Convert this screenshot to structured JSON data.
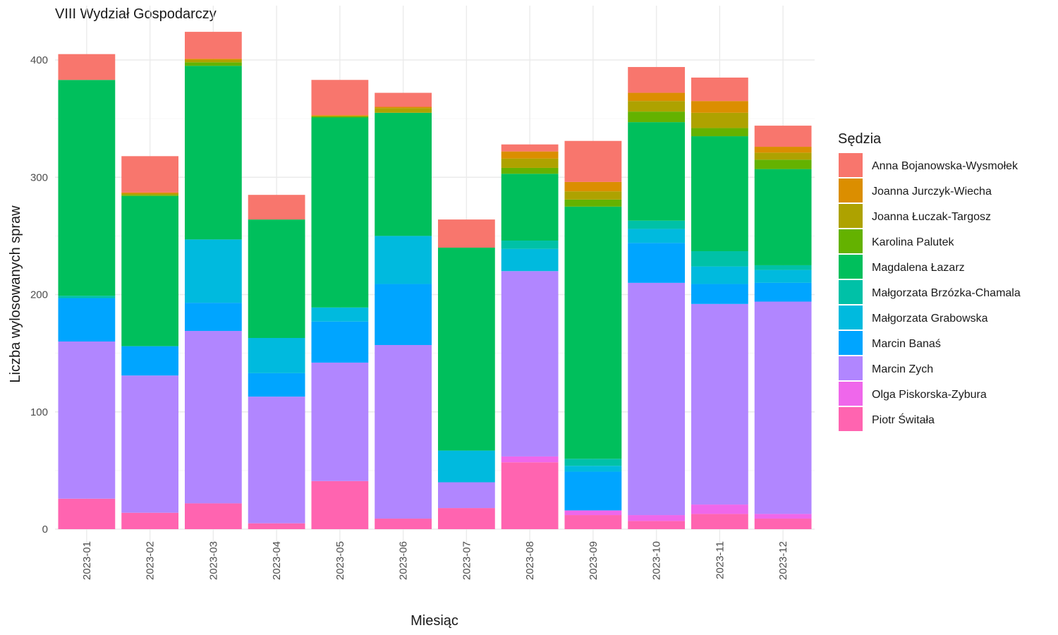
{
  "chart_data": {
    "type": "bar",
    "stacked": true,
    "title": "VIII Wydział Gospodarczy",
    "xlabel": "Miesiąc",
    "ylabel": "Liczba wylosowanych spraw",
    "ylim": [
      0,
      430
    ],
    "yticks": [
      0,
      100,
      200,
      300,
      400
    ],
    "grid": true,
    "legend_title": "Sędzia",
    "legend_position": "right",
    "categories": [
      "2023-01",
      "2023-02",
      "2023-03",
      "2023-04",
      "2023-05",
      "2023-06",
      "2023-07",
      "2023-08",
      "2023-09",
      "2023-10",
      "2023-11",
      "2023-12"
    ],
    "series": [
      {
        "name": "Piotr Świtała",
        "color": "#FF64B0",
        "values": [
          26,
          14,
          22,
          5,
          41,
          9,
          18,
          57,
          12,
          7,
          13,
          9
        ]
      },
      {
        "name": "Olga Piskorska-Zybura",
        "color": "#EF67EB",
        "values": [
          0,
          0,
          0,
          0,
          0,
          0,
          0,
          5,
          4,
          5,
          8,
          4
        ]
      },
      {
        "name": "Marcin Zych",
        "color": "#B186FF",
        "values": [
          134,
          117,
          147,
          108,
          101,
          148,
          22,
          158,
          0,
          198,
          171,
          181
        ]
      },
      {
        "name": "Marcin Banaś",
        "color": "#00A5FF",
        "values": [
          37,
          25,
          24,
          20,
          35,
          52,
          0,
          0,
          33,
          34,
          17,
          16
        ]
      },
      {
        "name": "Małgorzata Grabowska",
        "color": "#00BADE",
        "values": [
          0,
          0,
          54,
          30,
          12,
          41,
          27,
          19,
          5,
          12,
          15,
          11
        ]
      },
      {
        "name": "Małgorzata Brzózka-Chamala",
        "color": "#00C1A7",
        "values": [
          2,
          0,
          0,
          0,
          0,
          0,
          0,
          7,
          6,
          7,
          13,
          4
        ]
      },
      {
        "name": "Magdalena Łazarz",
        "color": "#00BF5C",
        "values": [
          184,
          128,
          148,
          101,
          162,
          105,
          173,
          57,
          215,
          84,
          98,
          82
        ]
      },
      {
        "name": "Karolina Palutek",
        "color": "#64B200",
        "values": [
          0,
          1,
          3,
          0,
          1,
          0,
          0,
          5,
          6,
          9,
          7,
          8
        ]
      },
      {
        "name": "Joanna Łuczak-Targosz",
        "color": "#AEA200",
        "values": [
          0,
          1,
          2,
          0,
          0,
          4,
          0,
          8,
          7,
          9,
          13,
          6
        ]
      },
      {
        "name": "Joanna Jurczyk-Wiecha",
        "color": "#DB8E00",
        "values": [
          0,
          1,
          1,
          0,
          1,
          1,
          0,
          6,
          8,
          7,
          10,
          5
        ]
      },
      {
        "name": "Anna Bojanowska-Wysmołek",
        "color": "#F8766D",
        "values": [
          22,
          31,
          23,
          21,
          30,
          12,
          24,
          6,
          35,
          22,
          20,
          18
        ]
      }
    ]
  }
}
